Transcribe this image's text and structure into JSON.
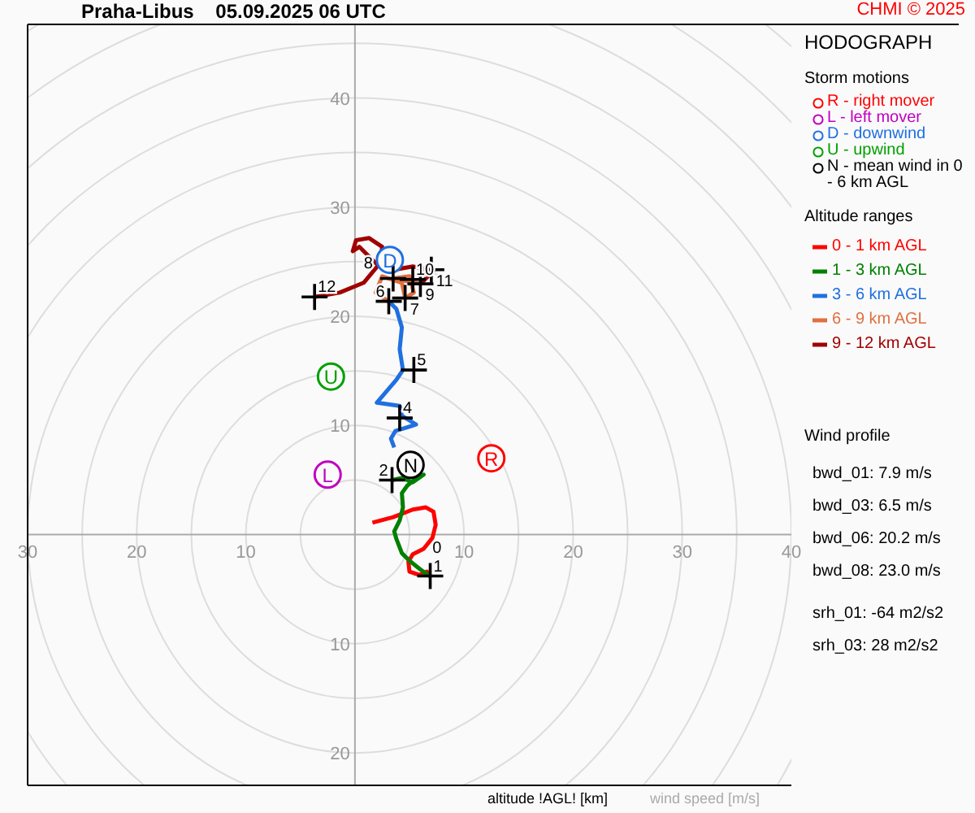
{
  "chart_data": {
    "type": "line",
    "title": "Praha-Libus    05.09.2025 06 UTC",
    "subtitle": "HODOGRAPH",
    "xlabel": "wind speed [m/s]",
    "legend_title": "Altitude ranges",
    "legend": "right",
    "line_style": "solid",
    "xlim": [
      -30,
      40
    ],
    "ylim": [
      -23,
      46.8
    ],
    "xticks": [
      {
        "value": -30,
        "label": "30"
      },
      {
        "value": -20,
        "label": "20"
      },
      {
        "value": -10,
        "label": "10"
      },
      10,
      20,
      30,
      40
    ],
    "yticks": [
      {
        "value": -20,
        "label": "20"
      },
      {
        "value": -10,
        "label": "10"
      },
      10,
      20,
      30,
      40
    ],
    "series": [
      {
        "name": "R - right mover",
        "type": "scatter",
        "marker": "circle",
        "color": "#ff0000",
        "x": [
          12.5
        ],
        "values": [
          7.0
        ]
      },
      {
        "name": "L - left mover",
        "type": "scatter",
        "marker": "circle",
        "color": "#c000c0",
        "x": [
          -2.5
        ],
        "values": [
          5.5
        ]
      },
      {
        "name": "D - downwind",
        "type": "scatter",
        "marker": "circle",
        "color": "#2070e0",
        "x": [
          3.2
        ],
        "values": [
          25.2
        ]
      },
      {
        "name": "U - upwind",
        "type": "scatter",
        "marker": "circle",
        "color": "#00a000",
        "x": [
          -2.2
        ],
        "values": [
          14.5
        ]
      },
      {
        "name": "N - mean wind in 0 - 6 km AGL",
        "type": "scatter",
        "marker": "circle",
        "color": "#000000",
        "x": [
          5.1
        ],
        "values": [
          6.4
        ]
      },
      {
        "name": "0 - 1 km AGL",
        "marker": "none",
        "color": "#ff0000",
        "x": [
          1.6,
          3.5,
          5.3,
          6.5,
          7.2,
          7.4,
          7.1,
          6.3,
          5.3,
          4.9,
          5.0,
          5.9,
          6.6,
          7.0
        ],
        "values": [
          1.1,
          1.6,
          2.3,
          2.5,
          2.1,
          0.9,
          -0.3,
          -1.3,
          -1.8,
          -2.5,
          -3.4,
          -3.7,
          -3.4,
          -3.9
        ]
      },
      {
        "name": "1 - 3 km AGL",
        "marker": "none",
        "color": "#008000",
        "x": [
          7.0,
          6.0,
          5.0,
          4.3,
          3.8,
          3.6,
          4.1,
          4.4,
          4.3,
          4.8,
          5.8,
          6.3,
          5.3,
          4.3,
          3.4
        ],
        "values": [
          -3.9,
          -3.2,
          -2.4,
          -1.7,
          -0.4,
          0.3,
          1.3,
          2.5,
          3.8,
          4.5,
          5.3,
          5.5,
          4.8,
          5.2,
          5.0
        ]
      },
      {
        "name": "3 - 6 km AGL",
        "marker": "none",
        "color": "#2070e0",
        "x": [
          3.6,
          3.3,
          3.7,
          5.6,
          4.3,
          4.1,
          2.0,
          3.8,
          4.4,
          4.1,
          4.3,
          3.8,
          3.2
        ],
        "values": [
          8.0,
          8.8,
          9.5,
          10.1,
          10.9,
          11.8,
          12.1,
          14.2,
          15.1,
          17.0,
          19.0,
          20.7,
          21.3
        ]
      },
      {
        "name": "6 - 9 km AGL",
        "marker": "none",
        "color": "#e07040",
        "x": [
          3.2,
          1.9,
          2.5,
          4.3,
          4.6,
          5.4,
          5.0,
          3.5,
          6.0
        ],
        "values": [
          21.3,
          22.2,
          23.7,
          23.1,
          21.7,
          22.2,
          23.7,
          23.5,
          23.0
        ]
      },
      {
        "name": "9 - 12 km AGL",
        "marker": "none",
        "color": "#a00000",
        "x": [
          6.0,
          7.2,
          5.3,
          3.1,
          1.9,
          0.4,
          -0.2,
          0.1,
          1.3,
          2.5,
          2.3,
          0.8,
          -1.4,
          -3.7
        ],
        "values": [
          23.0,
          24.2,
          24.6,
          24.2,
          24.9,
          26.4,
          26.0,
          27.0,
          27.2,
          26.4,
          24.9,
          23.1,
          22.2,
          21.8
        ]
      },
      {
        "type": "scatter",
        "marker": "cross",
        "color": "#000000",
        "x": [
          6.9,
          3.4,
          4.1,
          5.4,
          3.1,
          4.6,
          3.5,
          6.0,
          5.3,
          7.0,
          -3.7
        ],
        "values": [
          -3.8,
          5.0,
          10.7,
          15.1,
          21.4,
          21.7,
          23.5,
          23.0,
          23.4,
          24.3,
          21.8
        ]
      }
    ],
    "annotations": [
      "CHMI © 2025",
      "Storm motions",
      "Wind profile",
      "bwd_01: 7.9 m/s",
      "bwd_03: 6.5 m/s",
      "bwd_06: 20.2 m/s",
      "bwd_08: 23.0 m/s",
      "srh_01: -64 m2/s2",
      "srh_03: 28 m2/s2",
      "altitude !AGL! [km]",
      {
        "text": "R",
        "x": 12.5,
        "y": 7.0
      },
      {
        "text": "L",
        "x": -2.5,
        "y": 5.5
      },
      {
        "text": "D",
        "x": 3.2,
        "y": 25.2
      },
      {
        "text": "U",
        "x": -2.2,
        "y": 14.5
      },
      {
        "text": "N",
        "x": 5.1,
        "y": 6.4
      },
      {
        "text": "0",
        "x": 6.8,
        "y": -2.1
      },
      {
        "text": "1",
        "x": 6.9,
        "y": -3.8
      },
      {
        "text": "2",
        "x": 3.4,
        "y": 5.0
      },
      {
        "text": "4",
        "x": 4.1,
        "y": 10.7
      },
      {
        "text": "5",
        "x": 5.4,
        "y": 15.1
      },
      {
        "text": "6",
        "x": 3.1,
        "y": 21.4
      },
      {
        "text": "7",
        "x": 4.6,
        "y": 21.7
      },
      {
        "text": "8",
        "x": 3.5,
        "y": 23.5
      },
      {
        "text": "9",
        "x": 6.0,
        "y": 23.0
      },
      {
        "text": "10",
        "x": 5.3,
        "y": 23.4
      },
      {
        "text": "11",
        "x": 7.0,
        "y": 24.3
      },
      {
        "text": "12",
        "x": -3.7,
        "y": 21.8
      }
    ]
  }
}
